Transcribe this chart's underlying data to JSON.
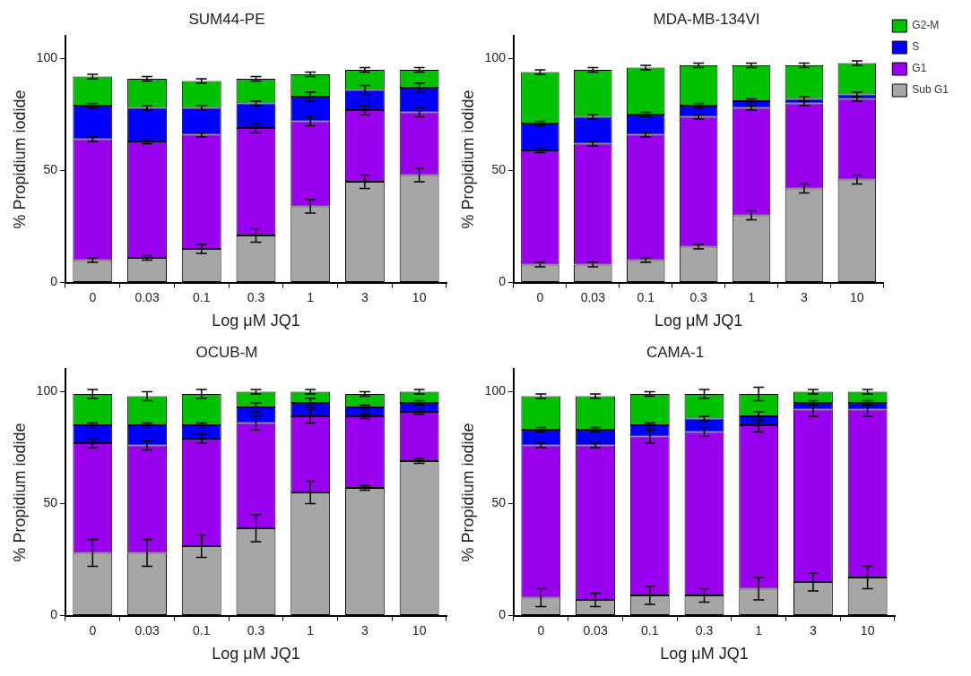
{
  "chart_data": [
    {
      "type": "bar",
      "stacked": true,
      "title": "SUM44-PE",
      "xlabel": "Log μM JQ1",
      "ylabel": "% Propidium iodide",
      "categories": [
        "0",
        "0.03",
        "0.1",
        "0.3",
        "1",
        "3",
        "10"
      ],
      "ylim": [
        0,
        110
      ],
      "yticks": [
        0,
        50,
        100
      ],
      "grid": false,
      "legend": false,
      "series": [
        {
          "color": "#a6a6a6",
          "values": [
            10,
            11,
            15,
            21,
            34,
            45,
            48
          ],
          "errors": [
            1,
            1,
            2,
            3,
            3,
            3,
            3
          ]
        },
        {
          "color": "#9900ee",
          "values": [
            54,
            52,
            51,
            48,
            38,
            32,
            28
          ],
          "errors": [
            1,
            1,
            1,
            2,
            2,
            2,
            2
          ]
        },
        {
          "color": "#0000ff",
          "values": [
            15,
            15,
            12,
            11,
            11,
            9,
            11
          ],
          "errors": [
            1,
            1,
            1,
            1,
            2,
            2,
            2
          ]
        },
        {
          "color": "#00c000",
          "values": [
            13,
            13,
            12,
            11,
            10,
            9,
            8
          ],
          "errors": [
            1,
            1,
            1,
            1,
            1,
            1,
            1
          ]
        }
      ]
    },
    {
      "type": "bar",
      "stacked": true,
      "title": "MDA-MB-134VI",
      "xlabel": "Log μM JQ1",
      "ylabel": "% Propidium iodide",
      "categories": [
        "0",
        "0.03",
        "0.1",
        "0.3",
        "1",
        "3",
        "10"
      ],
      "ylim": [
        0,
        110
      ],
      "yticks": [
        0,
        50,
        100
      ],
      "grid": false,
      "legend": "right",
      "series": [
        {
          "name": "Sub G1",
          "color": "#a6a6a6",
          "values": [
            8,
            8,
            10,
            16,
            30,
            42,
            46
          ],
          "errors": [
            1,
            1,
            1,
            1,
            2,
            2,
            2
          ]
        },
        {
          "name": "G1",
          "color": "#9900ee",
          "values": [
            51,
            54,
            56,
            58,
            48,
            38,
            36
          ],
          "errors": [
            1,
            1,
            1,
            1,
            1,
            1,
            1
          ]
        },
        {
          "name": "S",
          "color": "#0000ff",
          "values": [
            12,
            12,
            9,
            5,
            3,
            2,
            2
          ],
          "errors": [
            1,
            1,
            1,
            1,
            1,
            1,
            1
          ]
        },
        {
          "name": "G2-M",
          "color": "#00c000",
          "values": [
            23,
            21,
            21,
            18,
            16,
            15,
            14
          ],
          "errors": [
            1,
            1,
            1,
            1,
            1,
            1,
            1
          ]
        }
      ]
    },
    {
      "type": "bar",
      "stacked": true,
      "title": "OCUB-M",
      "xlabel": "Log μM JQ1",
      "ylabel": "% Propidium iodide",
      "categories": [
        "0",
        "0.03",
        "0.1",
        "0.3",
        "1",
        "3",
        "10"
      ],
      "ylim": [
        0,
        110
      ],
      "yticks": [
        0,
        50,
        100
      ],
      "grid": false,
      "legend": false,
      "series": [
        {
          "color": "#a6a6a6",
          "values": [
            28,
            28,
            31,
            39,
            55,
            57,
            69
          ],
          "errors": [
            6,
            6,
            5,
            6,
            5,
            1,
            1
          ]
        },
        {
          "color": "#9900ee",
          "values": [
            49,
            48,
            48,
            47,
            34,
            32,
            22
          ],
          "errors": [
            2,
            2,
            2,
            3,
            3,
            1,
            1
          ]
        },
        {
          "color": "#0000ff",
          "values": [
            8,
            9,
            6,
            7,
            6,
            4,
            4
          ],
          "errors": [
            1,
            1,
            1,
            2,
            2,
            1,
            1
          ]
        },
        {
          "color": "#00c000",
          "values": [
            14,
            13,
            14,
            7,
            5,
            6,
            5
          ],
          "errors": [
            2,
            2,
            2,
            1,
            1,
            1,
            1
          ]
        }
      ]
    },
    {
      "type": "bar",
      "stacked": true,
      "title": "CAMA-1",
      "xlabel": "Log μM JQ1",
      "ylabel": "% Propidium iodide",
      "categories": [
        "0",
        "0.03",
        "0.1",
        "0.3",
        "1",
        "3",
        "10"
      ],
      "ylim": [
        0,
        110
      ],
      "yticks": [
        0,
        50,
        100
      ],
      "grid": false,
      "legend": false,
      "series": [
        {
          "color": "#a6a6a6",
          "values": [
            8,
            7,
            9,
            9,
            12,
            15,
            17
          ],
          "errors": [
            4,
            3,
            4,
            3,
            5,
            4,
            5
          ]
        },
        {
          "color": "#9900ee",
          "values": [
            68,
            69,
            71,
            73,
            73,
            77,
            75
          ],
          "errors": [
            1,
            1,
            3,
            2,
            3,
            3,
            3
          ]
        },
        {
          "color": "#0000ff",
          "values": [
            7,
            7,
            5,
            6,
            4,
            3,
            3
          ],
          "errors": [
            1,
            1,
            1,
            1,
            2,
            1,
            1
          ]
        },
        {
          "color": "#00c000",
          "values": [
            15,
            15,
            14,
            11,
            10,
            5,
            5
          ],
          "errors": [
            1,
            1,
            1,
            2,
            3,
            1,
            1
          ]
        }
      ]
    }
  ]
}
